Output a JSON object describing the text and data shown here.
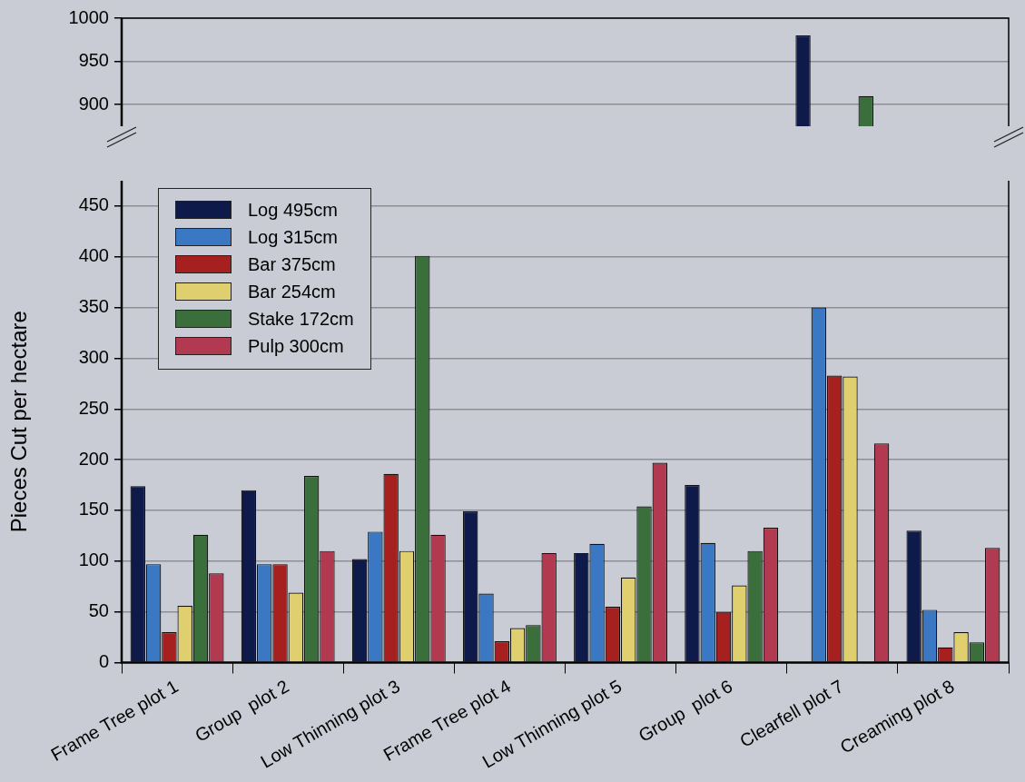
{
  "chart_data": [
    {
      "type": "bar",
      "categories": [
        null,
        null,
        null,
        null,
        null,
        null,
        null,
        null
      ],
      "series": [
        {
          "color": "#0d1a4a",
          "values": [
            null,
            null,
            null,
            null,
            null,
            null,
            980,
            null
          ]
        },
        {
          "color": "#3a78c4",
          "values": [
            null,
            null,
            null,
            null,
            null,
            null,
            null,
            null
          ]
        },
        {
          "color": "#a5201e",
          "values": [
            null,
            null,
            null,
            null,
            null,
            null,
            null,
            null
          ]
        },
        {
          "color": "#e0cf6e",
          "values": [
            null,
            null,
            null,
            null,
            null,
            null,
            null,
            null
          ]
        },
        {
          "color": "#3a6e3a",
          "values": [
            null,
            null,
            null,
            null,
            null,
            null,
            910,
            null
          ]
        },
        {
          "color": "#b23a50",
          "values": [
            null,
            null,
            null,
            null,
            null,
            null,
            null,
            null
          ]
        }
      ],
      "ylim": [
        875,
        1000
      ],
      "yticks": [
        900,
        950,
        1000
      ],
      "tick_labels": "y",
      "grid": "y"
    },
    {
      "type": "bar",
      "ylabel": "Pieces Cut per hectare",
      "categories": [
        "Frame Tree plot 1",
        "Group  plot 2",
        "Low Thinning plot 3",
        "Frame Tree plot 4",
        "Low Thinning plot 5",
        "Group  plot 6",
        "Clearfell plot 7",
        "Creaming plot 8"
      ],
      "series": [
        {
          "name": "Log 495cm",
          "color": "#0d1a4a",
          "values": [
            174,
            170,
            102,
            149,
            108,
            175,
            null,
            130
          ]
        },
        {
          "name": "Log 315cm",
          "color": "#3a78c4",
          "values": [
            97,
            97,
            129,
            68,
            117,
            118,
            350,
            52
          ]
        },
        {
          "name": "Bar 375cm",
          "color": "#a5201e",
          "values": [
            30,
            97,
            186,
            21,
            55,
            50,
            283,
            15
          ]
        },
        {
          "name": "Bar 254cm",
          "color": "#e0cf6e",
          "values": [
            56,
            69,
            110,
            34,
            84,
            76,
            282,
            30
          ]
        },
        {
          "name": "Stake 172cm",
          "color": "#3a6e3a",
          "values": [
            126,
            184,
            401,
            37,
            154,
            110,
            null,
            20
          ]
        },
        {
          "name": "Pulp 300cm",
          "color": "#b23a50",
          "values": [
            88,
            110,
            126,
            108,
            197,
            133,
            216,
            113
          ]
        }
      ],
      "ylim": [
        0,
        475
      ],
      "yticks": [
        0,
        50,
        100,
        150,
        200,
        250,
        300,
        350,
        400,
        450
      ],
      "grid": "y",
      "legend": "top left"
    }
  ]
}
